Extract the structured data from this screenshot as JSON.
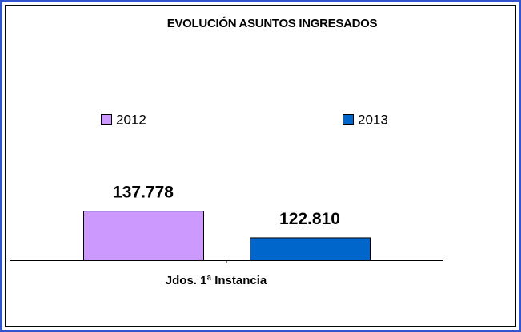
{
  "chart_data": {
    "type": "bar",
    "title": "EVOLUCIÓN ASUNTOS INGRESADOS",
    "categories": [
      "Jdos. 1ª Instancia"
    ],
    "series": [
      {
        "name": "2012",
        "color": "#cc99ff",
        "values": [
          137778
        ],
        "value_labels": [
          "137.778"
        ]
      },
      {
        "name": "2013",
        "color": "#0066cc",
        "values": [
          122810
        ],
        "value_labels": [
          "122.810"
        ]
      }
    ],
    "ylim": [
      110000,
      145000
    ]
  }
}
